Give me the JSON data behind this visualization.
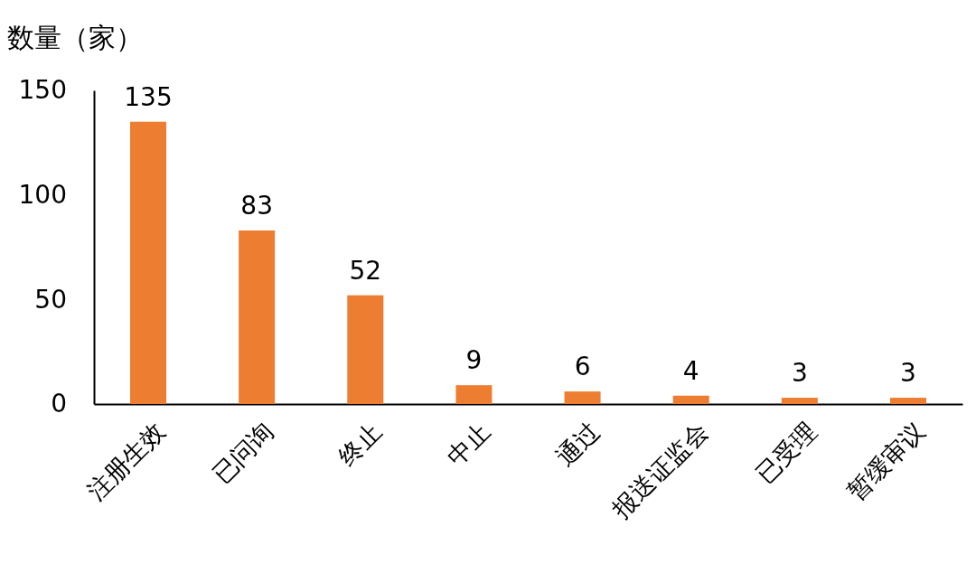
{
  "chart_data": {
    "type": "bar",
    "ylabel": "数量（家）",
    "categories": [
      "注册生效",
      "已问询",
      "终止",
      "中止",
      "通过",
      "报送证监会",
      "已受理",
      "暂缓审议"
    ],
    "values": [
      135,
      83,
      52,
      9,
      6,
      4,
      3,
      3
    ],
    "color": "#ed7d31",
    "ylim": [
      0,
      150
    ],
    "yticks": [
      0,
      50,
      100,
      150
    ],
    "grid": false,
    "data_labels": true
  }
}
